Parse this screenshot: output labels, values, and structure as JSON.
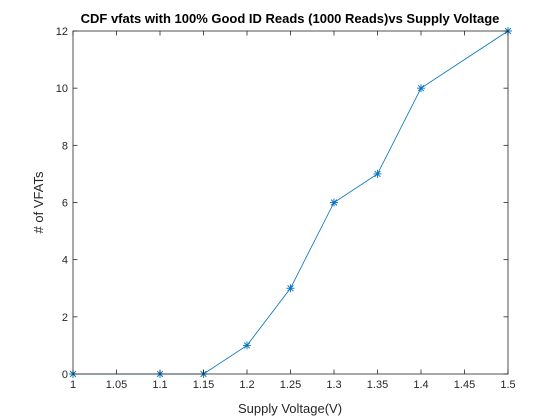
{
  "chart_data": {
    "type": "line",
    "title": "CDF vfats with 100% Good ID Reads (1000 Reads)vs Supply Voltage",
    "xlabel": "Supply Voltage(V)",
    "ylabel": "# of VFATs",
    "xlim": [
      1,
      1.5
    ],
    "ylim": [
      0,
      12
    ],
    "xticks": [
      1,
      1.05,
      1.1,
      1.15,
      1.2,
      1.25,
      1.3,
      1.35,
      1.4,
      1.45,
      1.5
    ],
    "xtick_labels": [
      "1",
      "1.05",
      "1.1",
      "1.15",
      "1.2",
      "1.25",
      "1.3",
      "1.35",
      "1.4",
      "1.45",
      "1.5"
    ],
    "yticks": [
      0,
      2,
      4,
      6,
      8,
      10,
      12
    ],
    "ytick_labels": [
      "0",
      "2",
      "4",
      "6",
      "8",
      "10",
      "12"
    ],
    "grid": false,
    "series": [
      {
        "marker": "asterisk",
        "color": "#0072BD",
        "x": [
          1.0,
          1.1,
          1.15,
          1.2,
          1.25,
          1.3,
          1.35,
          1.4,
          1.5
        ],
        "y": [
          0,
          0,
          0,
          1,
          3,
          6,
          7,
          10,
          12
        ]
      }
    ]
  }
}
